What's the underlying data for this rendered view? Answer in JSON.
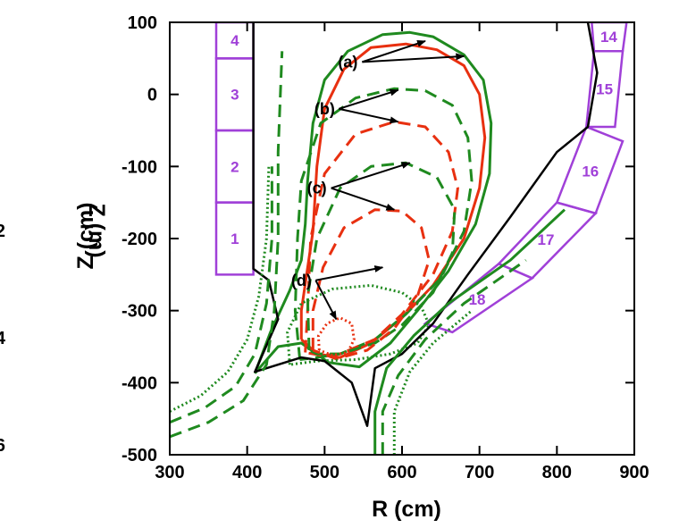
{
  "chart_data": {
    "type": "line",
    "xlabel": "R (cm)",
    "ylabel": "Z (cm)",
    "ylabel_behind": "Z (m)",
    "xlim": [
      300,
      900
    ],
    "ylim": [
      -500,
      100
    ],
    "x_ticks": [
      "300",
      "400",
      "500",
      "600",
      "700",
      "800",
      "900"
    ],
    "y_ticks": [
      "100",
      "0",
      "-100",
      "-200",
      "-300",
      "-400",
      "-500"
    ],
    "left_cut_ticks": [
      "2",
      "4",
      "6"
    ],
    "grid": false,
    "colors": {
      "green": "#1f8a1f",
      "red": "#e83010",
      "black": "#000000",
      "purple": "#a040d8"
    },
    "series": [
      {
        "color": "green",
        "dash": "solid",
        "points": [
          [
            410,
            -387
          ],
          [
            430,
            -330
          ],
          [
            455,
            -272
          ],
          [
            470,
            -230
          ],
          [
            475,
            -180
          ],
          [
            478,
            -120
          ],
          [
            485,
            -40
          ],
          [
            500,
            20
          ],
          [
            530,
            60
          ],
          [
            575,
            83
          ],
          [
            610,
            86
          ],
          [
            640,
            80
          ],
          [
            680,
            55
          ],
          [
            705,
            20
          ],
          [
            715,
            -40
          ],
          [
            713,
            -110
          ],
          [
            695,
            -180
          ],
          [
            660,
            -245
          ],
          [
            620,
            -300
          ],
          [
            585,
            -345
          ],
          [
            545,
            -378
          ],
          [
            505,
            -372
          ],
          [
            470,
            -345
          ],
          [
            440,
            -350
          ],
          [
            410,
            -387
          ]
        ]
      },
      {
        "color": "red",
        "dash": "solid",
        "points": [
          [
            470,
            -340
          ],
          [
            470,
            -300
          ],
          [
            485,
            -190
          ],
          [
            490,
            -100
          ],
          [
            500,
            -20
          ],
          [
            525,
            35
          ],
          [
            560,
            65
          ],
          [
            605,
            70
          ],
          [
            645,
            62
          ],
          [
            680,
            40
          ],
          [
            700,
            0
          ],
          [
            707,
            -60
          ],
          [
            700,
            -130
          ],
          [
            680,
            -200
          ],
          [
            640,
            -265
          ],
          [
            600,
            -310
          ],
          [
            560,
            -345
          ],
          [
            520,
            -365
          ],
          [
            490,
            -360
          ],
          [
            470,
            -340
          ]
        ]
      },
      {
        "color": "green",
        "dash": "dashed",
        "points": [
          [
            468,
            -368
          ],
          [
            462,
            -300
          ],
          [
            465,
            -200
          ],
          [
            470,
            -120
          ],
          [
            495,
            -40
          ],
          [
            540,
            -5
          ],
          [
            590,
            8
          ],
          [
            630,
            5
          ],
          [
            665,
            -15
          ],
          [
            685,
            -60
          ],
          [
            690,
            -120
          ],
          [
            680,
            -190
          ],
          [
            650,
            -255
          ],
          [
            605,
            -305
          ],
          [
            565,
            -340
          ],
          [
            520,
            -360
          ],
          [
            490,
            -365
          ],
          [
            468,
            -368
          ]
        ]
      },
      {
        "color": "red",
        "dash": "dashed",
        "points": [
          [
            475,
            -358
          ],
          [
            478,
            -300
          ],
          [
            482,
            -200
          ],
          [
            500,
            -110
          ],
          [
            540,
            -55
          ],
          [
            590,
            -38
          ],
          [
            630,
            -45
          ],
          [
            660,
            -80
          ],
          [
            672,
            -130
          ],
          [
            665,
            -190
          ],
          [
            640,
            -250
          ],
          [
            600,
            -305
          ],
          [
            565,
            -340
          ],
          [
            520,
            -360
          ],
          [
            495,
            -362
          ],
          [
            475,
            -358
          ]
        ]
      },
      {
        "color": "green",
        "dash": "dashed",
        "points": [
          [
            480,
            -355
          ],
          [
            478,
            -280
          ],
          [
            490,
            -200
          ],
          [
            520,
            -130
          ],
          [
            560,
            -100
          ],
          [
            605,
            -95
          ],
          [
            645,
            -115
          ],
          [
            668,
            -160
          ],
          [
            665,
            -220
          ],
          [
            640,
            -275
          ],
          [
            600,
            -320
          ],
          [
            565,
            -345
          ],
          [
            520,
            -360
          ],
          [
            490,
            -360
          ],
          [
            480,
            -355
          ]
        ]
      },
      {
        "color": "red",
        "dash": "dashed",
        "points": [
          [
            485,
            -355
          ],
          [
            485,
            -300
          ],
          [
            498,
            -240
          ],
          [
            525,
            -185
          ],
          [
            565,
            -160
          ],
          [
            600,
            -162
          ],
          [
            625,
            -185
          ],
          [
            635,
            -230
          ],
          [
            620,
            -280
          ],
          [
            590,
            -325
          ],
          [
            555,
            -355
          ],
          [
            515,
            -367
          ],
          [
            485,
            -355
          ]
        ]
      },
      {
        "color": "green",
        "dash": "dotted",
        "points": [
          [
            455,
            -375
          ],
          [
            452,
            -330
          ],
          [
            470,
            -290
          ],
          [
            510,
            -270
          ],
          [
            560,
            -265
          ],
          [
            600,
            -275
          ],
          [
            625,
            -295
          ],
          [
            635,
            -320
          ],
          [
            620,
            -345
          ],
          [
            585,
            -360
          ],
          [
            540,
            -368
          ],
          [
            490,
            -370
          ],
          [
            455,
            -375
          ]
        ]
      },
      {
        "color": "red",
        "dash": "dotted",
        "points": [
          [
            493,
            -355
          ],
          [
            492,
            -335
          ],
          [
            503,
            -318
          ],
          [
            520,
            -310
          ],
          [
            535,
            -318
          ],
          [
            538,
            -340
          ],
          [
            530,
            -358
          ],
          [
            510,
            -362
          ],
          [
            493,
            -355
          ]
        ]
      },
      {
        "color": "black",
        "dash": "solid",
        "points": [
          [
            408,
            100
          ],
          [
            408,
            -242
          ],
          [
            428,
            -258
          ],
          [
            440,
            -312
          ],
          [
            410,
            -385
          ],
          [
            470,
            -365
          ],
          [
            500,
            -370
          ],
          [
            535,
            -400
          ],
          [
            555,
            -460
          ],
          [
            565,
            -380
          ],
          [
            600,
            -360
          ],
          [
            640,
            -318
          ],
          [
            685,
            -250
          ],
          [
            740,
            -170
          ],
          [
            800,
            -80
          ],
          [
            840,
            -45
          ],
          [
            852,
            30
          ],
          [
            840,
            100
          ]
        ]
      },
      {
        "color": "green",
        "dash": "solid",
        "points": [
          [
            565,
            -500
          ],
          [
            565,
            -440
          ],
          [
            580,
            -380
          ],
          [
            615,
            -335
          ],
          [
            660,
            -290
          ],
          [
            740,
            -230
          ],
          [
            810,
            -160
          ]
        ]
      },
      {
        "color": "green",
        "dash": "dashed",
        "points": [
          [
            575,
            -500
          ],
          [
            575,
            -440
          ],
          [
            595,
            -390
          ],
          [
            630,
            -340
          ],
          [
            680,
            -290
          ],
          [
            760,
            -230
          ]
        ]
      },
      {
        "color": "green",
        "dash": "dotted",
        "points": [
          [
            590,
            -500
          ],
          [
            590,
            -440
          ],
          [
            610,
            -385
          ],
          [
            640,
            -345
          ],
          [
            690,
            -300
          ]
        ]
      },
      {
        "color": "green",
        "dash": "dashed",
        "points": [
          [
            300,
            -475
          ],
          [
            350,
            -455
          ],
          [
            395,
            -425
          ],
          [
            425,
            -375
          ],
          [
            435,
            -300
          ],
          [
            440,
            -200
          ],
          [
            440,
            -80
          ],
          [
            445,
            60
          ]
        ]
      },
      {
        "color": "green",
        "dash": "dashed",
        "points": [
          [
            300,
            -455
          ],
          [
            345,
            -435
          ],
          [
            385,
            -405
          ],
          [
            410,
            -360
          ],
          [
            425,
            -290
          ],
          [
            432,
            -200
          ],
          [
            432,
            -100
          ]
        ]
      },
      {
        "color": "green",
        "dash": "dotted",
        "points": [
          [
            300,
            -440
          ],
          [
            340,
            -418
          ],
          [
            375,
            -385
          ],
          [
            400,
            -340
          ],
          [
            415,
            -280
          ],
          [
            425,
            -200
          ],
          [
            428,
            -100
          ]
        ]
      }
    ],
    "boxes": [
      {
        "label": "4",
        "polygon": [
          [
            360,
            100
          ],
          [
            408,
            100
          ],
          [
            408,
            50
          ],
          [
            360,
            50
          ]
        ]
      },
      {
        "label": "3",
        "polygon": [
          [
            360,
            50
          ],
          [
            408,
            50
          ],
          [
            408,
            -50
          ],
          [
            360,
            -50
          ]
        ]
      },
      {
        "label": "2",
        "polygon": [
          [
            360,
            -50
          ],
          [
            408,
            -50
          ],
          [
            408,
            -150
          ],
          [
            360,
            -150
          ]
        ]
      },
      {
        "label": "1",
        "polygon": [
          [
            360,
            -150
          ],
          [
            408,
            -150
          ],
          [
            408,
            -250
          ],
          [
            360,
            -250
          ]
        ]
      },
      {
        "label": "14",
        "polygon": [
          [
            845,
            100
          ],
          [
            890,
            100
          ],
          [
            885,
            60
          ],
          [
            848,
            60
          ]
        ]
      },
      {
        "label": "15",
        "polygon": [
          [
            848,
            60
          ],
          [
            885,
            60
          ],
          [
            875,
            -45
          ],
          [
            838,
            -45
          ]
        ]
      },
      {
        "label": "16",
        "polygon": [
          [
            838,
            -45
          ],
          [
            885,
            -65
          ],
          [
            850,
            -165
          ],
          [
            800,
            -150
          ]
        ]
      },
      {
        "label": "17",
        "polygon": [
          [
            800,
            -150
          ],
          [
            850,
            -165
          ],
          [
            768,
            -255
          ],
          [
            725,
            -235
          ]
        ]
      },
      {
        "label": "18",
        "polygon": [
          [
            725,
            -235
          ],
          [
            768,
            -255
          ],
          [
            665,
            -330
          ],
          [
            630,
            -318
          ]
        ]
      }
    ],
    "annotations": [
      {
        "label": "(a)",
        "text_at": [
          530,
          45
        ],
        "arrows_to": [
          [
            630,
            74
          ],
          [
            680,
            53
          ]
        ]
      },
      {
        "label": "(b)",
        "text_at": [
          500,
          -20
        ],
        "arrows_to": [
          [
            595,
            6
          ],
          [
            595,
            -38
          ]
        ]
      },
      {
        "label": "(c)",
        "text_at": [
          490,
          -130
        ],
        "arrows_to": [
          [
            610,
            -95
          ],
          [
            590,
            -160
          ]
        ]
      },
      {
        "label": "(d)",
        "text_at": [
          470,
          -258
        ],
        "arrows_to": [
          [
            575,
            -240
          ],
          [
            515,
            -312
          ]
        ]
      }
    ]
  }
}
